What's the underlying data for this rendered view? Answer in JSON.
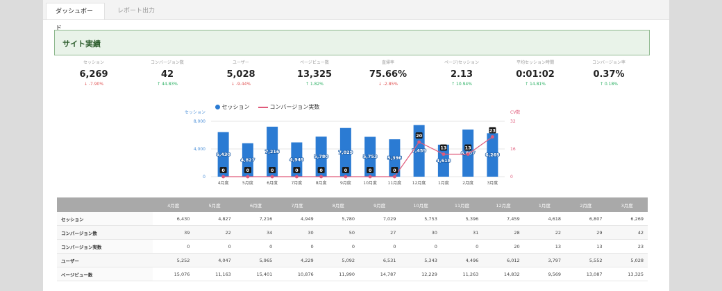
{
  "tabs": {
    "dashboard": "ダッシュボード",
    "report": "レポート出力"
  },
  "section": {
    "title": "サイト実績"
  },
  "kpis": [
    {
      "label": "セッション",
      "value": "6,269",
      "delta": "↓ -7.90%",
      "direction": "down"
    },
    {
      "label": "コンバージョン数",
      "value": "42",
      "delta": "↑ 44.83%",
      "direction": "up"
    },
    {
      "label": "ユーザー",
      "value": "5,028",
      "delta": "↓ -9.44%",
      "direction": "down"
    },
    {
      "label": "ページビュー数",
      "value": "13,325",
      "delta": "↑ 1.82%",
      "direction": "up"
    },
    {
      "label": "直帰率",
      "value": "75.66%",
      "delta": "↓ -2.85%",
      "direction": "down"
    },
    {
      "label": "ページ/セッション",
      "value": "2.13",
      "delta": "↑ 10.94%",
      "direction": "up"
    },
    {
      "label": "平均セッション時間",
      "value": "0:01:02",
      "delta": "↑ 14.81%",
      "direction": "up"
    },
    {
      "label": "コンバージョン率",
      "value": "0.37%",
      "delta": "↑ 0.18%",
      "direction": "up"
    }
  ],
  "colors": {
    "bar": "#2b7bd3",
    "line": "#e05a7a",
    "up": "#27ae60",
    "down": "#e05252"
  },
  "chart_data": {
    "type": "bar",
    "categories": [
      "4月度",
      "5月度",
      "6月度",
      "7月度",
      "8月度",
      "9月度",
      "10月度",
      "11月度",
      "12月度",
      "1月度",
      "2月度",
      "3月度"
    ],
    "series": [
      {
        "name": "セッション",
        "type": "bar",
        "axis": "left",
        "values": [
          6430,
          4827,
          7216,
          4949,
          5780,
          7029,
          5753,
          5396,
          7459,
          4618,
          6807,
          6269
        ]
      },
      {
        "name": "コンバージョン実数",
        "type": "line",
        "axis": "right",
        "values": [
          0,
          0,
          0,
          0,
          0,
          0,
          0,
          0,
          20,
          13,
          13,
          23
        ]
      }
    ],
    "left_axis": {
      "title": "セッション",
      "ticks": [
        "0",
        "4,000",
        "8,000"
      ],
      "ylim": [
        0,
        8000
      ]
    },
    "right_axis": {
      "title": "CV数",
      "ticks": [
        "0",
        "16",
        "32"
      ],
      "ylim": [
        0,
        32
      ]
    },
    "legend": "top"
  },
  "table": {
    "headers": [
      "4月度",
      "5月度",
      "6月度",
      "7月度",
      "8月度",
      "9月度",
      "10月度",
      "11月度",
      "12月度",
      "1月度",
      "2月度",
      "3月度"
    ],
    "rows": [
      {
        "label": "セッション",
        "values": [
          "6,430",
          "4,827",
          "7,216",
          "4,949",
          "5,780",
          "7,029",
          "5,753",
          "5,396",
          "7,459",
          "4,618",
          "6,807",
          "6,269"
        ]
      },
      {
        "label": "コンバージョン数",
        "values": [
          "39",
          "22",
          "34",
          "30",
          "50",
          "27",
          "30",
          "31",
          "28",
          "22",
          "29",
          "42"
        ]
      },
      {
        "label": "コンバージョン実数",
        "values": [
          "0",
          "0",
          "0",
          "0",
          "0",
          "0",
          "0",
          "0",
          "20",
          "13",
          "13",
          "23"
        ]
      },
      {
        "label": "ユーザー",
        "values": [
          "5,252",
          "4,047",
          "5,965",
          "4,229",
          "5,092",
          "6,531",
          "5,343",
          "4,496",
          "6,012",
          "3,797",
          "5,552",
          "5,028"
        ]
      },
      {
        "label": "ページビュー数",
        "values": [
          "15,076",
          "11,163",
          "15,401",
          "10,876",
          "11,990",
          "14,787",
          "12,229",
          "11,263",
          "14,832",
          "9,569",
          "13,087",
          "13,325"
        ]
      }
    ]
  }
}
